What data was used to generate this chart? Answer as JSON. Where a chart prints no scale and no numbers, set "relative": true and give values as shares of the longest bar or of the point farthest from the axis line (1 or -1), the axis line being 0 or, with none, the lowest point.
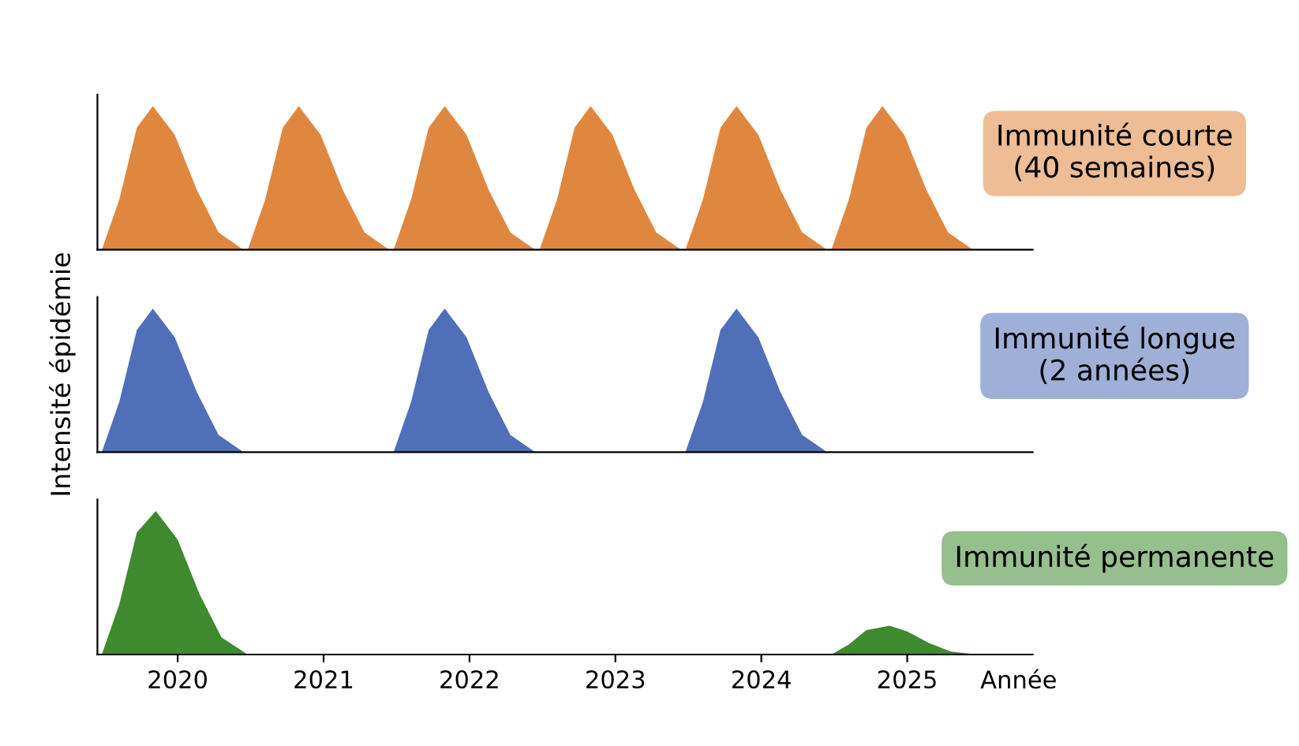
{
  "chart_data": [
    {
      "type": "area",
      "relative": true,
      "xlim": [
        2019.45,
        2025.86
      ],
      "tick_labels": false,
      "annotations": [
        "Immunité courte\n(40 semaines)"
      ],
      "series": [
        {
          "color": "#e0873f",
          "x": [
            2019.48,
            2019.6,
            2019.72,
            2019.83,
            2019.98,
            2020.13,
            2020.28,
            2020.45,
            2020.48,
            2020.6,
            2020.72,
            2020.83,
            2020.98,
            2021.13,
            2021.28,
            2021.45,
            2021.48,
            2021.6,
            2021.72,
            2021.83,
            2021.98,
            2022.13,
            2022.28,
            2022.45,
            2022.48,
            2022.6,
            2022.72,
            2022.83,
            2022.98,
            2023.13,
            2023.28,
            2023.45,
            2023.48,
            2023.6,
            2023.72,
            2023.83,
            2023.98,
            2024.13,
            2024.28,
            2024.45,
            2024.48,
            2024.6,
            2024.72,
            2024.83,
            2024.98,
            2025.13,
            2025.28,
            2025.45
          ],
          "values": [
            0,
            0.35,
            0.85,
            1,
            0.8,
            0.42,
            0.12,
            0,
            0,
            0.35,
            0.85,
            1,
            0.8,
            0.42,
            0.12,
            0,
            0,
            0.35,
            0.85,
            1,
            0.8,
            0.42,
            0.12,
            0,
            0,
            0.35,
            0.85,
            1,
            0.8,
            0.42,
            0.12,
            0,
            0,
            0.35,
            0.85,
            1,
            0.8,
            0.42,
            0.12,
            0,
            0,
            0.35,
            0.85,
            1,
            0.8,
            0.42,
            0.12,
            0
          ]
        }
      ]
    },
    {
      "type": "area",
      "relative": true,
      "xlim": [
        2019.45,
        2025.86
      ],
      "tick_labels": false,
      "ylabel": "Intensité épidémie",
      "annotations": [
        "Immunité longue\n(2 années)"
      ],
      "series": [
        {
          "color": "#4f6fb8",
          "x": [
            2019.48,
            2019.6,
            2019.72,
            2019.83,
            2019.98,
            2020.13,
            2020.28,
            2020.45,
            2021.48,
            2021.6,
            2021.72,
            2021.83,
            2021.98,
            2022.13,
            2022.28,
            2022.45,
            2023.48,
            2023.6,
            2023.72,
            2023.83,
            2023.98,
            2024.13,
            2024.28,
            2024.45
          ],
          "values": [
            0,
            0.35,
            0.85,
            1,
            0.8,
            0.42,
            0.12,
            0,
            0,
            0.35,
            0.85,
            1,
            0.8,
            0.42,
            0.12,
            0,
            0,
            0.35,
            0.85,
            1,
            0.8,
            0.42,
            0.12,
            0
          ]
        }
      ]
    },
    {
      "type": "area",
      "relative": true,
      "xlim": [
        2019.45,
        2025.86
      ],
      "xticks": [
        2020,
        2021,
        2022,
        2023,
        2024,
        2025
      ],
      "tick_labels": "x",
      "xlabel": "Année",
      "annotations": [
        "Immunité permanente"
      ],
      "series": [
        {
          "color": "#3f8a2f",
          "x": [
            2019.48,
            2019.6,
            2019.72,
            2019.85,
            2020.0,
            2020.15,
            2020.3,
            2020.48,
            2024.48,
            2024.6,
            2024.72,
            2024.88,
            2025.0,
            2025.15,
            2025.3,
            2025.48
          ],
          "values": [
            0,
            0.35,
            0.85,
            1,
            0.8,
            0.42,
            0.12,
            0,
            0,
            0.07,
            0.17,
            0.2,
            0.16,
            0.08,
            0.02,
            0
          ]
        }
      ]
    }
  ]
}
